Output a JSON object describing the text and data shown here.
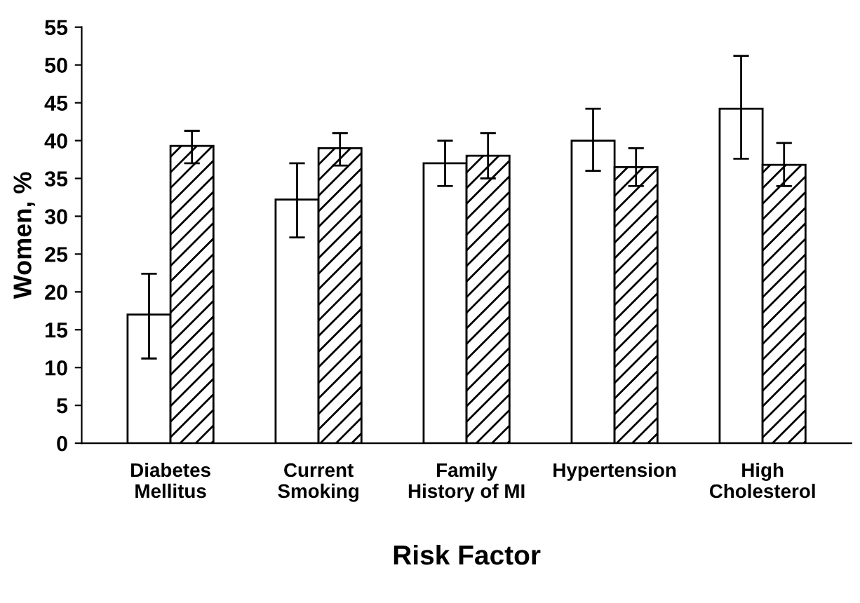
{
  "chart_data": {
    "type": "bar",
    "xlabel": "Risk Factor",
    "ylabel": "Women, %",
    "categories": [
      "Diabetes\nMellitus",
      "Current\nSmoking",
      "Family\nHistory of MI",
      "Hypertension",
      "High\nCholesterol"
    ],
    "series": [
      {
        "color": "#ffffff",
        "values": [
          17,
          32.2,
          37,
          40,
          44.2
        ],
        "errors": [
          [
            11.2,
            22.4
          ],
          [
            27.2,
            37
          ],
          [
            34,
            40
          ],
          [
            36,
            44.2
          ],
          [
            37.6,
            51.2
          ]
        ]
      },
      {
        "color": "#000000",
        "values": [
          39.3,
          39,
          38,
          36.5,
          36.8
        ],
        "errors": [
          [
            37,
            41.3
          ],
          [
            36.7,
            41
          ],
          [
            35,
            41
          ],
          [
            34,
            39
          ],
          [
            34,
            39.7
          ]
        ]
      }
    ],
    "ylim": [
      0,
      55
    ],
    "yticks": [
      0,
      5,
      10,
      15,
      20,
      25,
      30,
      35,
      40,
      45,
      50,
      55
    ],
    "grid": false,
    "legend": false
  }
}
